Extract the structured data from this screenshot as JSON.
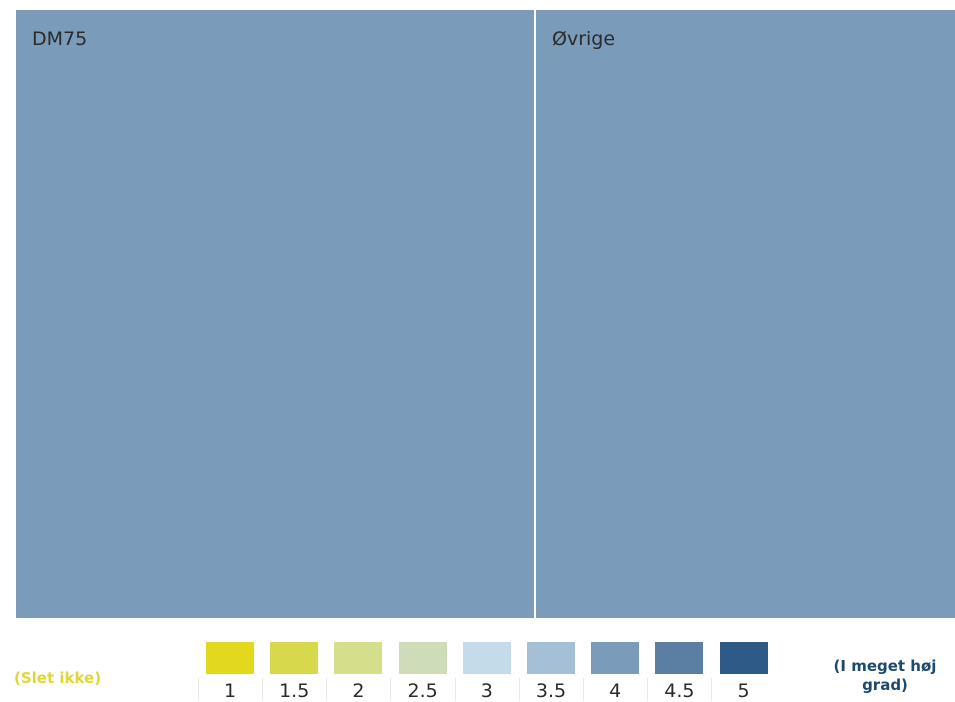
{
  "chart_data": {
    "type": "heatmap",
    "tiles": [
      {
        "label": "DM75",
        "value": 4
      },
      {
        "label": "Øvrige",
        "value": 4
      }
    ],
    "legend": {
      "ticks": [
        "1",
        "1.5",
        "2",
        "2.5",
        "3",
        "3.5",
        "4",
        "4.5",
        "5"
      ],
      "colors": [
        "#e2d81e",
        "#d8d84c",
        "#d5de8a",
        "#cedcba",
        "#c4dcea",
        "#a5bfd6",
        "#7a9cba",
        "#5a7fa3",
        "#2e5a87"
      ],
      "low_label": "(Slet ikke)",
      "high_label": "(I meget høj grad)",
      "low_color": "#e0d637",
      "high_color": "#1c4a6e"
    }
  }
}
